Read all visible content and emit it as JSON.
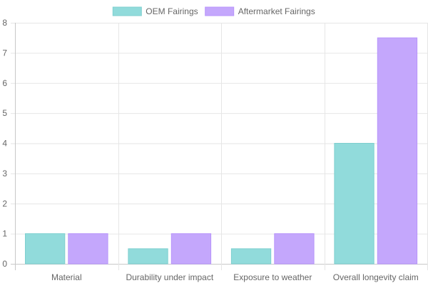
{
  "chart_data": {
    "type": "bar",
    "categories": [
      "Material",
      "Durability under impact",
      "Exposure to weather",
      "Overall longevity claim"
    ],
    "series": [
      {
        "name": "OEM Fairings",
        "values": [
          1,
          0.5,
          0.5,
          4
        ],
        "color": "#91dbdb",
        "border": "#7ecfcf"
      },
      {
        "name": "Aftermarket Fairings",
        "values": [
          1,
          1,
          1,
          7.5
        ],
        "color": "#c4a7fc",
        "border": "#b895fb"
      }
    ],
    "ylim": [
      0,
      8
    ],
    "yticks": [
      "0",
      "1",
      "2",
      "3",
      "4",
      "5",
      "6",
      "7",
      "8"
    ],
    "grid": true,
    "legend_position": "top"
  }
}
